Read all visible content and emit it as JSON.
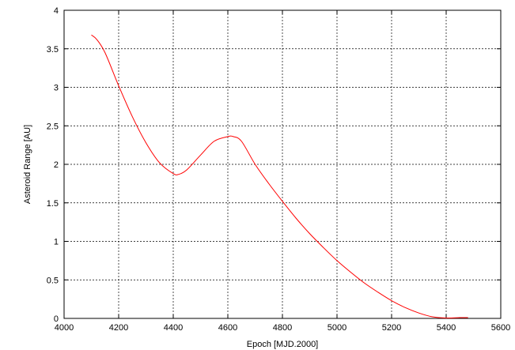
{
  "chart_data": {
    "type": "line",
    "title": "",
    "xlabel": "Epoch [MJD.2000]",
    "ylabel": "Asteroid Range [AU]",
    "xlim": [
      4000,
      5600
    ],
    "ylim": [
      0,
      4
    ],
    "xticks": [
      4000,
      4200,
      4400,
      4600,
      4800,
      5000,
      5200,
      5400,
      5600
    ],
    "xtick_labels": [
      "4000",
      "4200",
      "4400",
      "4600",
      "4800",
      "5000",
      "5200",
      "5400",
      "5600"
    ],
    "yticks": [
      0,
      0.5,
      1,
      1.5,
      2,
      2.5,
      3,
      3.5,
      4
    ],
    "ytick_labels": [
      "0",
      "0.5",
      "1",
      "1.5",
      "2",
      "2.5",
      "3",
      "3.5",
      "4"
    ],
    "grid": true,
    "legend": "none",
    "series": [
      {
        "color": "#ff0000",
        "x": [
          4100,
          4120,
          4150,
          4200,
          4250,
          4300,
          4350,
          4400,
          4420,
          4450,
          4500,
          4550,
          4600,
          4620,
          4650,
          4700,
          4750,
          4800,
          4850,
          4900,
          4950,
          5000,
          5050,
          5100,
          5150,
          5200,
          5250,
          5300,
          5350,
          5400,
          5450,
          5480
        ],
        "y": [
          3.68,
          3.62,
          3.45,
          3.02,
          2.62,
          2.28,
          2.02,
          1.88,
          1.87,
          1.93,
          2.12,
          2.3,
          2.36,
          2.36,
          2.3,
          2.0,
          1.75,
          1.52,
          1.3,
          1.1,
          0.92,
          0.75,
          0.6,
          0.46,
          0.34,
          0.23,
          0.14,
          0.07,
          0.02,
          0.005,
          0.01,
          0.01
        ]
      }
    ]
  }
}
